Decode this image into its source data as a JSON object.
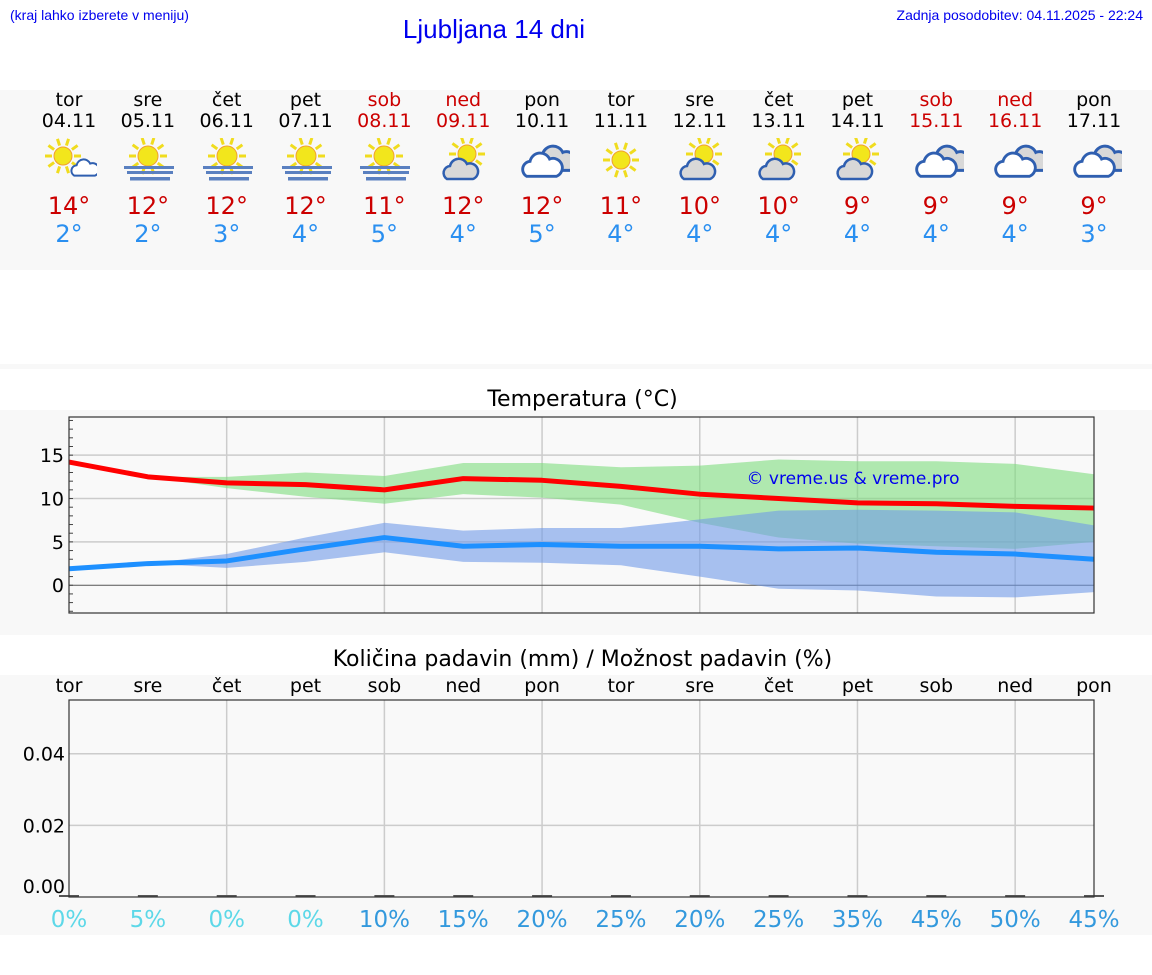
{
  "header": {
    "hint": "(kraj lahko izberete v meniju)",
    "title": "Ljubljana 14 dni",
    "updated": "Zadnja posodobitev: 04.11.2025 - 22:24"
  },
  "days": [
    {
      "name": "tor",
      "date": "04.11",
      "weekend": false,
      "icon": "sun-small-cloud",
      "max": "14°",
      "min": "2°"
    },
    {
      "name": "sre",
      "date": "05.11",
      "weekend": false,
      "icon": "sun-fog",
      "max": "12°",
      "min": "2°"
    },
    {
      "name": "čet",
      "date": "06.11",
      "weekend": false,
      "icon": "sun-fog",
      "max": "12°",
      "min": "3°"
    },
    {
      "name": "pet",
      "date": "07.11",
      "weekend": false,
      "icon": "sun-fog",
      "max": "12°",
      "min": "4°"
    },
    {
      "name": "sob",
      "date": "08.11",
      "weekend": true,
      "icon": "sun-fog",
      "max": "11°",
      "min": "5°"
    },
    {
      "name": "ned",
      "date": "09.11",
      "weekend": true,
      "icon": "partly-cloudy",
      "max": "12°",
      "min": "4°"
    },
    {
      "name": "pon",
      "date": "10.11",
      "weekend": false,
      "icon": "cloudy",
      "max": "12°",
      "min": "5°"
    },
    {
      "name": "tor",
      "date": "11.11",
      "weekend": false,
      "icon": "sun",
      "max": "11°",
      "min": "4°"
    },
    {
      "name": "sre",
      "date": "12.11",
      "weekend": false,
      "icon": "partly-cloudy",
      "max": "10°",
      "min": "4°"
    },
    {
      "name": "čet",
      "date": "13.11",
      "weekend": false,
      "icon": "partly-cloudy",
      "max": "10°",
      "min": "4°"
    },
    {
      "name": "pet",
      "date": "14.11",
      "weekend": false,
      "icon": "partly-cloudy",
      "max": "9°",
      "min": "4°"
    },
    {
      "name": "sob",
      "date": "15.11",
      "weekend": true,
      "icon": "cloudy",
      "max": "9°",
      "min": "4°"
    },
    {
      "name": "ned",
      "date": "16.11",
      "weekend": true,
      "icon": "cloudy",
      "max": "9°",
      "min": "4°"
    },
    {
      "name": "pon",
      "date": "17.11",
      "weekend": false,
      "icon": "cloudy",
      "max": "9°",
      "min": "3°"
    }
  ],
  "colors": {
    "max": "#ff0000",
    "min": "#1e90ff",
    "max_band": "#7ddc7d",
    "min_band": "#6f9ae8",
    "weekend": "#cc0000",
    "prob_low": "#5dd8e8",
    "prob_high": "#3399dd"
  },
  "chart_data": [
    {
      "type": "line",
      "title": "Temperatura (°C)",
      "x": [
        "04.11",
        "05.11",
        "06.11",
        "07.11",
        "08.11",
        "09.11",
        "10.11",
        "11.11",
        "12.11",
        "13.11",
        "14.11",
        "15.11",
        "16.11",
        "17.11"
      ],
      "ylim": [
        -3.2,
        19.4
      ],
      "yticks": [
        0,
        5,
        10,
        15
      ],
      "grid": true,
      "watermark": "© vreme.us & vreme.pro",
      "series": [
        {
          "values": [
            14.2,
            12.5,
            11.8,
            11.6,
            11.0,
            12.3,
            12.1,
            11.4,
            10.5,
            10.0,
            9.5,
            9.4,
            9.1,
            8.9
          ],
          "band_upper": [
            14.2,
            12.5,
            12.5,
            13.0,
            12.6,
            14.1,
            14.1,
            13.6,
            13.8,
            14.5,
            14.3,
            14.3,
            14.0,
            12.8
          ],
          "band_lower": [
            14.2,
            12.5,
            11.2,
            10.2,
            9.4,
            10.5,
            10.1,
            9.3,
            7.2,
            5.5,
            4.8,
            4.5,
            4.2,
            5.0
          ]
        },
        {
          "values": [
            1.9,
            2.5,
            2.8,
            4.2,
            5.5,
            4.5,
            4.7,
            4.5,
            4.5,
            4.2,
            4.3,
            3.8,
            3.6,
            3.0
          ],
          "band_upper": [
            1.9,
            2.5,
            3.6,
            5.5,
            7.2,
            6.3,
            6.6,
            6.6,
            7.6,
            8.6,
            8.7,
            8.6,
            8.4,
            6.9
          ],
          "band_lower": [
            1.9,
            2.5,
            2.0,
            2.7,
            3.8,
            2.7,
            2.6,
            2.3,
            1.0,
            -0.4,
            -0.6,
            -1.3,
            -1.4,
            -0.8
          ]
        }
      ]
    },
    {
      "type": "bar",
      "title": "Količina padavin (mm) / Možnost padavin (%)",
      "categories": [
        "tor",
        "sre",
        "čet",
        "pet",
        "sob",
        "ned",
        "pon",
        "tor",
        "sre",
        "čet",
        "pet",
        "sob",
        "ned",
        "pon"
      ],
      "values": [
        0,
        0,
        0,
        0,
        0,
        0,
        0,
        0,
        0,
        0,
        0,
        0,
        0,
        0
      ],
      "ylim": [
        0,
        0.055
      ],
      "yticks": [
        "0.00",
        "0.02",
        "0.04"
      ],
      "probability": [
        "0%",
        "5%",
        "0%",
        "0%",
        "10%",
        "15%",
        "20%",
        "25%",
        "20%",
        "25%",
        "35%",
        "45%",
        "50%",
        "45%"
      ],
      "grid": true
    }
  ]
}
